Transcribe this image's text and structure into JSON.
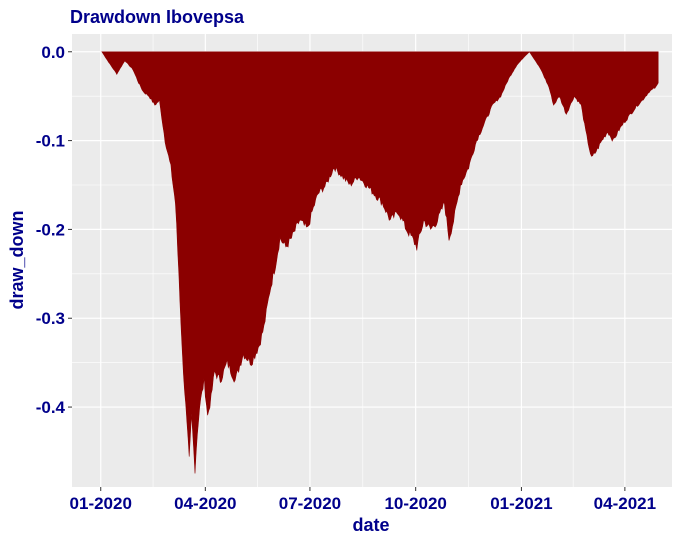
{
  "chart_data": {
    "type": "area",
    "title": "Drawdown Ibovepsa",
    "xlabel": "date",
    "ylabel": "draw_down",
    "x_ticks": [
      "01-2020",
      "04-2020",
      "07-2020",
      "10-2020",
      "01-2021",
      "04-2021"
    ],
    "y_ticks": [
      0.0,
      -0.1,
      -0.2,
      -0.3,
      -0.4
    ],
    "y_tick_labels": [
      "0.0",
      "-0.1",
      "-0.2",
      "-0.3",
      "-0.4"
    ],
    "xlim": [
      "2019-12-07",
      "2021-05-12"
    ],
    "ylim": [
      -0.49,
      0.02
    ],
    "grid": true,
    "legend": "none",
    "series": [
      {
        "points": [
          [
            "2020-01-02",
            0.0
          ],
          [
            "2020-01-08",
            -0.012
          ],
          [
            "2020-01-15",
            -0.025
          ],
          [
            "2020-01-22",
            -0.01
          ],
          [
            "2020-01-29",
            -0.02
          ],
          [
            "2020-02-03",
            -0.035
          ],
          [
            "2020-02-07",
            -0.045
          ],
          [
            "2020-02-12",
            -0.05
          ],
          [
            "2020-02-17",
            -0.06
          ],
          [
            "2020-02-21",
            -0.055
          ],
          [
            "2020-02-26",
            -0.1
          ],
          [
            "2020-03-02",
            -0.13
          ],
          [
            "2020-03-06",
            -0.17
          ],
          [
            "2020-03-09",
            -0.25
          ],
          [
            "2020-03-12",
            -0.34
          ],
          [
            "2020-03-16",
            -0.42
          ],
          [
            "2020-03-18",
            -0.46
          ],
          [
            "2020-03-20",
            -0.41
          ],
          [
            "2020-03-23",
            -0.47
          ],
          [
            "2020-03-25",
            -0.43
          ],
          [
            "2020-03-27",
            -0.4
          ],
          [
            "2020-03-31",
            -0.37
          ],
          [
            "2020-04-03",
            -0.41
          ],
          [
            "2020-04-06",
            -0.39
          ],
          [
            "2020-04-09",
            -0.36
          ],
          [
            "2020-04-14",
            -0.37
          ],
          [
            "2020-04-20",
            -0.35
          ],
          [
            "2020-04-27",
            -0.37
          ],
          [
            "2020-05-04",
            -0.34
          ],
          [
            "2020-05-11",
            -0.35
          ],
          [
            "2020-05-18",
            -0.33
          ],
          [
            "2020-05-22",
            -0.31
          ],
          [
            "2020-05-27",
            -0.27
          ],
          [
            "2020-06-01",
            -0.24
          ],
          [
            "2020-06-05",
            -0.21
          ],
          [
            "2020-06-10",
            -0.22
          ],
          [
            "2020-06-15",
            -0.21
          ],
          [
            "2020-06-22",
            -0.19
          ],
          [
            "2020-06-29",
            -0.2
          ],
          [
            "2020-07-03",
            -0.18
          ],
          [
            "2020-07-08",
            -0.16
          ],
          [
            "2020-07-15",
            -0.15
          ],
          [
            "2020-07-22",
            -0.13
          ],
          [
            "2020-07-29",
            -0.14
          ],
          [
            "2020-08-05",
            -0.15
          ],
          [
            "2020-08-12",
            -0.14
          ],
          [
            "2020-08-19",
            -0.15
          ],
          [
            "2020-08-26",
            -0.16
          ],
          [
            "2020-09-02",
            -0.17
          ],
          [
            "2020-09-09",
            -0.19
          ],
          [
            "2020-09-16",
            -0.18
          ],
          [
            "2020-09-23",
            -0.2
          ],
          [
            "2020-09-28",
            -0.21
          ],
          [
            "2020-10-02",
            -0.22
          ],
          [
            "2020-10-08",
            -0.19
          ],
          [
            "2020-10-14",
            -0.2
          ],
          [
            "2020-10-20",
            -0.19
          ],
          [
            "2020-10-26",
            -0.17
          ],
          [
            "2020-10-30",
            -0.21
          ],
          [
            "2020-11-03",
            -0.19
          ],
          [
            "2020-11-09",
            -0.15
          ],
          [
            "2020-11-16",
            -0.13
          ],
          [
            "2020-11-23",
            -0.1
          ],
          [
            "2020-11-30",
            -0.08
          ],
          [
            "2020-12-07",
            -0.06
          ],
          [
            "2020-12-14",
            -0.05
          ],
          [
            "2020-12-21",
            -0.03
          ],
          [
            "2020-12-28",
            -0.015
          ],
          [
            "2021-01-04",
            -0.005
          ],
          [
            "2021-01-08",
            0.0
          ],
          [
            "2021-01-13",
            -0.01
          ],
          [
            "2021-01-18",
            -0.02
          ],
          [
            "2021-01-25",
            -0.04
          ],
          [
            "2021-01-29",
            -0.06
          ],
          [
            "2021-02-03",
            -0.05
          ],
          [
            "2021-02-09",
            -0.07
          ],
          [
            "2021-02-16",
            -0.05
          ],
          [
            "2021-02-22",
            -0.06
          ],
          [
            "2021-02-26",
            -0.09
          ],
          [
            "2021-03-03",
            -0.12
          ],
          [
            "2021-03-08",
            -0.11
          ],
          [
            "2021-03-12",
            -0.1
          ],
          [
            "2021-03-17",
            -0.09
          ],
          [
            "2021-03-22",
            -0.1
          ],
          [
            "2021-03-26",
            -0.09
          ],
          [
            "2021-03-31",
            -0.08
          ],
          [
            "2021-04-06",
            -0.07
          ],
          [
            "2021-04-12",
            -0.06
          ],
          [
            "2021-04-16",
            -0.055
          ],
          [
            "2021-04-22",
            -0.045
          ],
          [
            "2021-04-28",
            -0.04
          ],
          [
            "2021-04-30",
            -0.035
          ]
        ],
        "color": "#8b0000"
      }
    ]
  },
  "colors": {
    "panel_background": "#ebebeb",
    "grid": "#ffffff",
    "text": "#00008b",
    "area": "#8b0000"
  }
}
